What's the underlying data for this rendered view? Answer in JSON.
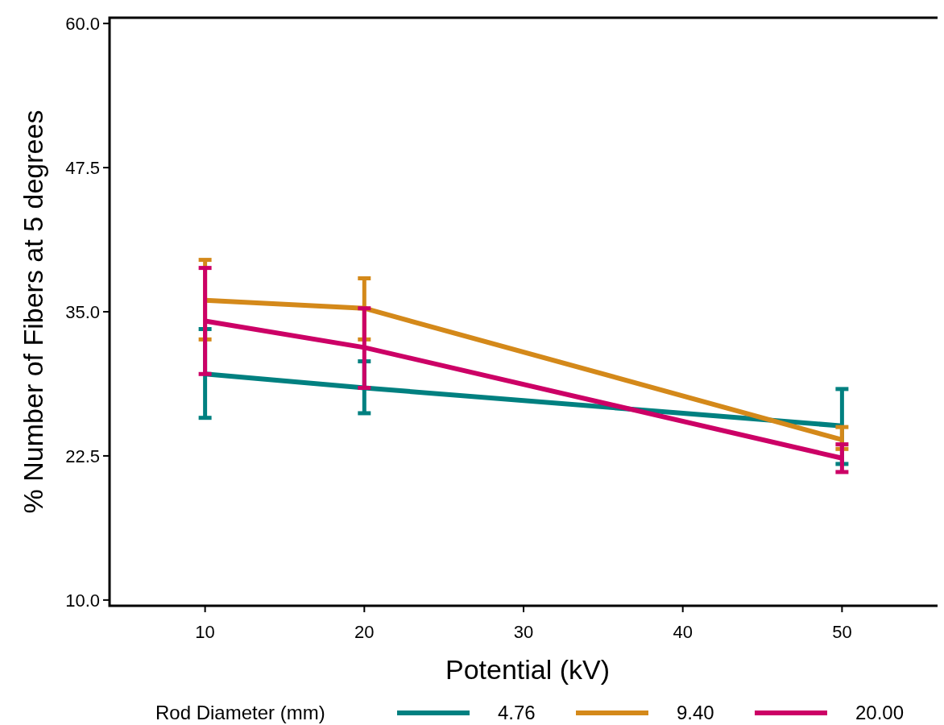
{
  "chart_data": {
    "type": "line",
    "xlabel": "Potential (kV)",
    "ylabel": "% Number of Fibers at 5 degrees",
    "legend_title": "Rod Diameter (mm)",
    "x": [
      10,
      20,
      50
    ],
    "xlim": [
      4,
      56
    ],
    "xticks": [
      10,
      20,
      30,
      40,
      50
    ],
    "ylim": [
      9.5,
      60.5
    ],
    "yticks": [
      {
        "value": 10,
        "label": "10.0"
      },
      {
        "value": 22.5,
        "label": "22.5"
      },
      {
        "value": 35,
        "label": "35.0"
      },
      {
        "value": 47.5,
        "label": "47.5"
      },
      {
        "value": 60,
        "label": "60.0"
      }
    ],
    "series": [
      {
        "name": "4.76",
        "color": "#008080",
        "values": [
          29.6,
          28.4,
          25.1
        ],
        "errors": [
          [
            25.8,
            33.5
          ],
          [
            26.2,
            30.7
          ],
          [
            21.8,
            28.3
          ]
        ]
      },
      {
        "name": "9.40",
        "color": "#d4891a",
        "values": [
          36.0,
          35.3,
          23.9
        ],
        "errors": [
          [
            32.6,
            39.5
          ],
          [
            32.6,
            37.9
          ],
          [
            23.1,
            25.0
          ]
        ]
      },
      {
        "name": "20.00",
        "color": "#cc0066",
        "values": [
          34.2,
          31.9,
          22.3
        ],
        "errors": [
          [
            29.6,
            38.8
          ],
          [
            28.4,
            35.3
          ],
          [
            21.1,
            23.5
          ]
        ]
      }
    ],
    "grid": false,
    "legend": "bottom",
    "marker": "none",
    "line_style": "solid"
  }
}
